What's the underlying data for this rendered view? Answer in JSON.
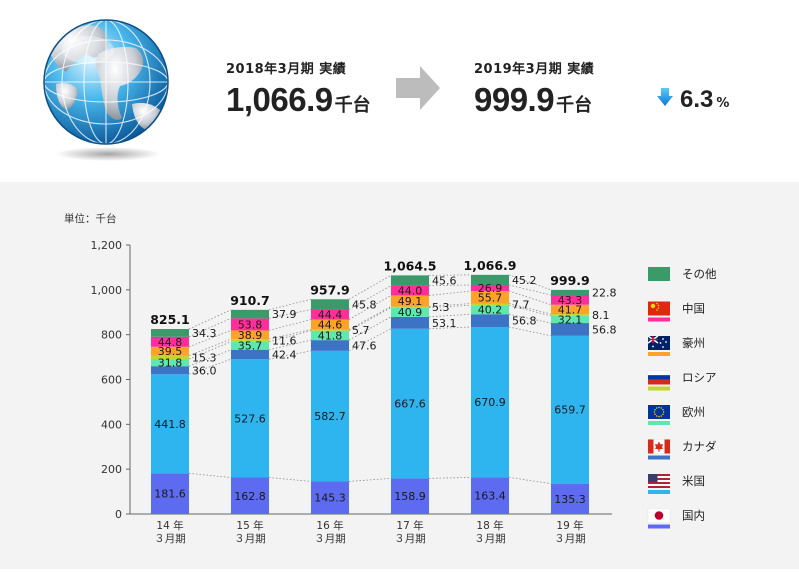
{
  "header": {
    "from": {
      "caption": "2018年3月期 実績",
      "value": "1,066.9",
      "unit": "千台"
    },
    "to": {
      "caption": "2019年3月期 実績",
      "value": "999.9",
      "unit": "千台"
    },
    "change": {
      "value": "6.3",
      "unit": "%",
      "direction": "down"
    }
  },
  "chart_data": {
    "type": "bar",
    "stacked": true,
    "unit_label": "単位：千台",
    "categories": [
      [
        "14 年",
        "３月期"
      ],
      [
        "15 年",
        "３月期"
      ],
      [
        "16 年",
        "３月期"
      ],
      [
        "17 年",
        "３月期"
      ],
      [
        "18 年",
        "３月期"
      ],
      [
        "19 年",
        "３月期"
      ]
    ],
    "ylim": [
      0,
      1200
    ],
    "yticks": [
      0,
      200,
      400,
      600,
      800,
      1000,
      1200
    ],
    "ytick_labels": [
      "0",
      "200",
      "400",
      "600",
      "800",
      "1,000",
      "1,200"
    ],
    "grid": false,
    "legend_position": "right",
    "totals": [
      "825.1",
      "910.7",
      "957.9",
      "1,064.5",
      "1,066.9",
      "999.9"
    ],
    "series": [
      {
        "name": "国内",
        "color": "#5c6bf0",
        "values": [
          181.6,
          162.8,
          145.3,
          158.9,
          163.4,
          135.3
        ],
        "labels": [
          "181.6",
          "162.8",
          "145.3",
          "158.9",
          "163.4",
          "135.3"
        ]
      },
      {
        "name": "米国",
        "color": "#2eb4ef",
        "values": [
          441.8,
          527.6,
          582.7,
          667.6,
          670.9,
          659.7
        ],
        "labels": [
          "441.8",
          "527.6",
          "582.7",
          "667.6",
          "670.9",
          "659.7"
        ]
      },
      {
        "name": "カナダ",
        "color": "#3c73c4",
        "values": [
          36.0,
          42.4,
          47.6,
          53.1,
          56.8,
          56.8
        ],
        "labels": [
          "36.0",
          "42.4",
          "47.6",
          "53.1",
          "56.8",
          "56.8"
        ]
      },
      {
        "name": "欧州",
        "color": "#5ee8b0",
        "values": [
          31.8,
          35.7,
          41.8,
          40.9,
          40.2,
          32.1
        ],
        "labels": [
          "31.8",
          "35.7",
          "41.8",
          "40.9",
          "40.2",
          "32.1"
        ]
      },
      {
        "name": "ロシア",
        "color": "#c2d633",
        "values": [
          15.3,
          11.6,
          5.7,
          5.3,
          7.7,
          8.1
        ],
        "labels": [
          "15.3",
          "11.6",
          "5.7",
          "5.3",
          "7.7",
          "8.1"
        ]
      },
      {
        "name": "豪州",
        "color": "#ffa22a",
        "values": [
          39.5,
          38.9,
          44.6,
          49.1,
          55.7,
          41.7
        ],
        "labels": [
          "39.5",
          "38.9",
          "44.6",
          "49.1",
          "55.7",
          "41.7"
        ]
      },
      {
        "name": "中国",
        "color": "#ff2e9a",
        "values": [
          44.8,
          53.8,
          44.4,
          44.0,
          26.9,
          43.3
        ],
        "labels": [
          "44.8",
          "53.8",
          "44.4",
          "44.0",
          "26.9",
          "43.3"
        ]
      },
      {
        "name": "その他",
        "color": "#3a9a6a",
        "values": [
          34.3,
          37.9,
          45.8,
          45.6,
          45.2,
          22.8
        ],
        "labels": [
          "34.3",
          "37.9",
          "45.8",
          "45.6",
          "45.2",
          "22.8"
        ]
      }
    ],
    "legend": [
      {
        "name": "その他",
        "icon": "plain",
        "swatch": "#3a9a6a"
      },
      {
        "name": "中国",
        "icon": "china-flag-icon",
        "swatch": "#ff2e9a"
      },
      {
        "name": "豪州",
        "icon": "australia-flag-icon",
        "swatch": "#ffa22a"
      },
      {
        "name": "ロシア",
        "icon": "russia-flag-icon",
        "swatch": "#c2d633"
      },
      {
        "name": "欧州",
        "icon": "eu-flag-icon",
        "swatch": "#5ee8b0"
      },
      {
        "name": "カナダ",
        "icon": "canada-flag-icon",
        "swatch": "#3c73c4"
      },
      {
        "name": "米国",
        "icon": "usa-flag-icon",
        "swatch": "#2eb4ef"
      },
      {
        "name": "国内",
        "icon": "japan-flag-icon",
        "swatch": "#5c6bf0"
      }
    ]
  }
}
